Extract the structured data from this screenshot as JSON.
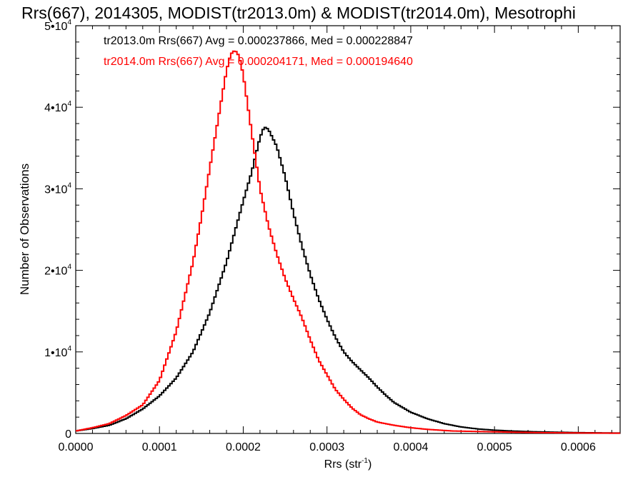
{
  "chart_data": {
    "type": "line",
    "title": "Rrs(667), 2014305, MODIST(tr2013.0m) & MODIST(tr2014.0m), Mesotrophi",
    "xlabel": "Rrs (str",
    "xlabel_sup": "-1",
    "xlabel_end": ")",
    "ylabel": "Number of Observations",
    "xlim": [
      0.0,
      0.00065
    ],
    "ylim": [
      0,
      50000
    ],
    "x_ticks": [
      {
        "value": 0.0,
        "label": "0.0000"
      },
      {
        "value": 0.0001,
        "label": "0.0001"
      },
      {
        "value": 0.0002,
        "label": "0.0002"
      },
      {
        "value": 0.0003,
        "label": "0.0003"
      },
      {
        "value": 0.0004,
        "label": "0.0004"
      },
      {
        "value": 0.0005,
        "label": "0.0005"
      },
      {
        "value": 0.0006,
        "label": "0.0006"
      }
    ],
    "y_ticks": [
      {
        "value": 0,
        "base": "0",
        "exp": ""
      },
      {
        "value": 10000,
        "base": "1•10",
        "exp": "4"
      },
      {
        "value": 20000,
        "base": "2•10",
        "exp": "4"
      },
      {
        "value": 30000,
        "base": "3•10",
        "exp": "4"
      },
      {
        "value": 40000,
        "base": "4•10",
        "exp": "4"
      },
      {
        "value": 50000,
        "base": "5•10",
        "exp": "4"
      }
    ],
    "legend_position": "top-left",
    "series": [
      {
        "name": "tr2013.0m Rrs(667) Avg = 0.000237866, Med = 0.000228847",
        "color": "#000000",
        "points": [
          [
            0.0,
            300
          ],
          [
            2e-05,
            600
          ],
          [
            4e-05,
            1000
          ],
          [
            6e-05,
            1800
          ],
          [
            8e-05,
            3000
          ],
          [
            0.0001,
            4600
          ],
          [
            0.00012,
            6800
          ],
          [
            0.00014,
            10000
          ],
          [
            0.00016,
            14800
          ],
          [
            0.00018,
            21000
          ],
          [
            0.0002,
            28500
          ],
          [
            0.00021,
            32000
          ],
          [
            0.00022,
            36300
          ],
          [
            0.000225,
            37600
          ],
          [
            0.00023,
            37300
          ],
          [
            0.00024,
            35200
          ],
          [
            0.00025,
            31500
          ],
          [
            0.00026,
            27000
          ],
          [
            0.00027,
            23000
          ],
          [
            0.00028,
            19500
          ],
          [
            0.00029,
            16500
          ],
          [
            0.0003,
            14000
          ],
          [
            0.00031,
            11800
          ],
          [
            0.00032,
            10000
          ],
          [
            0.00033,
            8800
          ],
          [
            0.00034,
            7800
          ],
          [
            0.00035,
            6800
          ],
          [
            0.00036,
            5700
          ],
          [
            0.00037,
            4700
          ],
          [
            0.00038,
            3800
          ],
          [
            0.0004,
            2600
          ],
          [
            0.00042,
            1800
          ],
          [
            0.00044,
            1200
          ],
          [
            0.00046,
            800
          ],
          [
            0.00048,
            550
          ],
          [
            0.0005,
            400
          ],
          [
            0.00052,
            300
          ],
          [
            0.00055,
            200
          ],
          [
            0.0006,
            100
          ],
          [
            0.00065,
            50
          ]
        ]
      },
      {
        "name": "tr2014.0m Rrs(667) Avg = 0.000204171, Med = 0.000194640",
        "color": "#ff0000",
        "points": [
          [
            0.0,
            300
          ],
          [
            2e-05,
            700
          ],
          [
            4e-05,
            1200
          ],
          [
            6e-05,
            2200
          ],
          [
            8e-05,
            3500
          ],
          [
            0.0001,
            6500
          ],
          [
            0.00012,
            12500
          ],
          [
            0.00014,
            21000
          ],
          [
            0.00015,
            26500
          ],
          [
            0.00016,
            32500
          ],
          [
            0.00017,
            38500
          ],
          [
            0.00018,
            44500
          ],
          [
            0.000185,
            46500
          ],
          [
            0.00019,
            47000
          ],
          [
            0.000195,
            46300
          ],
          [
            0.0002,
            44000
          ],
          [
            0.00021,
            37000
          ],
          [
            0.00022,
            30000
          ],
          [
            0.00023,
            25500
          ],
          [
            0.00024,
            22000
          ],
          [
            0.00025,
            19000
          ],
          [
            0.00026,
            16500
          ],
          [
            0.00027,
            14200
          ],
          [
            0.00028,
            11500
          ],
          [
            0.00029,
            9000
          ],
          [
            0.0003,
            7200
          ],
          [
            0.00031,
            5400
          ],
          [
            0.00032,
            4200
          ],
          [
            0.00033,
            3100
          ],
          [
            0.00034,
            2300
          ],
          [
            0.00035,
            1800
          ],
          [
            0.00036,
            1400
          ],
          [
            0.00038,
            1000
          ],
          [
            0.0004,
            700
          ],
          [
            0.00042,
            500
          ],
          [
            0.00045,
            300
          ],
          [
            0.0005,
            200
          ],
          [
            0.00055,
            100
          ],
          [
            0.0006,
            60
          ],
          [
            0.00065,
            30
          ]
        ]
      }
    ]
  }
}
